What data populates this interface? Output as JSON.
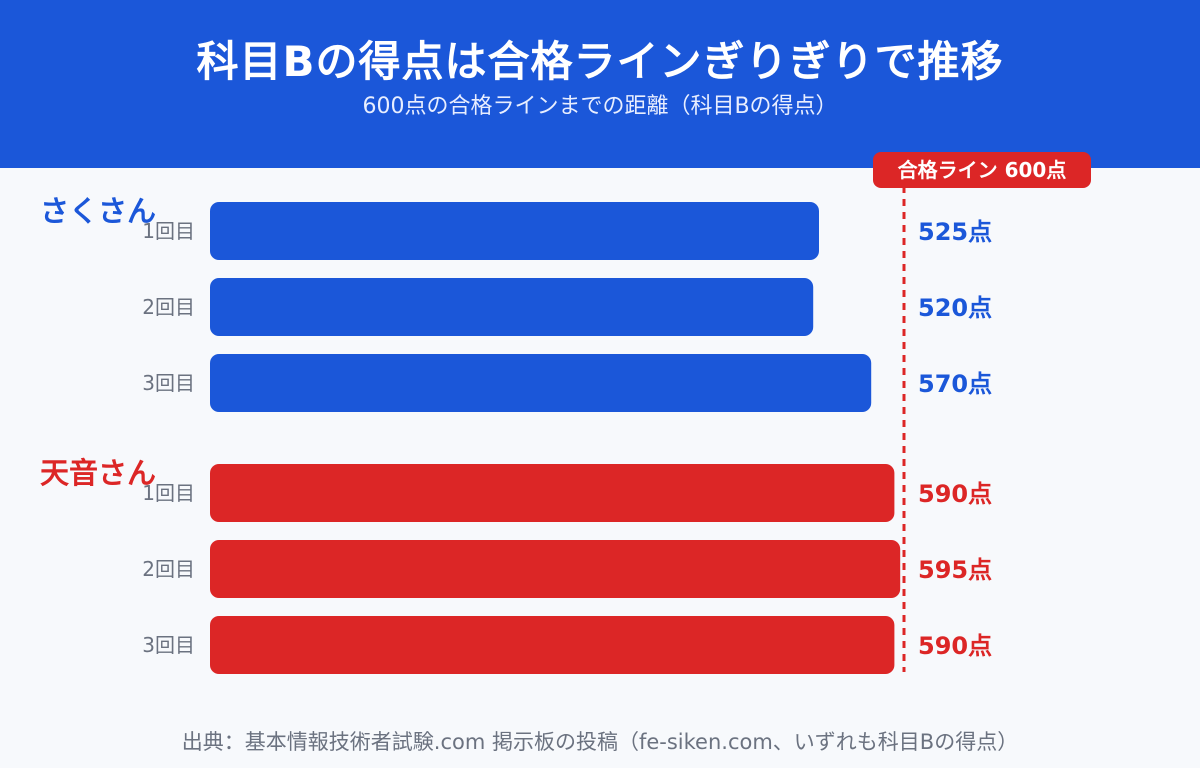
{
  "header": {
    "title": "科目Bの得点は合格ラインぎりぎりで推移",
    "subtitle": "600点の合格ラインまでの距離（科目Bの得点）"
  },
  "source": "出典：基本情報技術者試験.com 掲示板の投稿（fe-siken.com、いずれも科目Bの得点）",
  "colors": {
    "header_bg": "#1b57d9",
    "sakusan": "#1b57d9",
    "amane": "#dc2626",
    "threshold": "#dc2626",
    "attempt_label": "#6b7280",
    "background": "#f7f9fc"
  },
  "chart_data": {
    "type": "bar",
    "orientation": "horizontal",
    "title": "科目Bの得点は合格ラインぎりぎりで推移",
    "subtitle": "600点の合格ラインまでの距離（科目Bの得点）",
    "xlim": [
      0,
      640
    ],
    "grid": false,
    "threshold": {
      "value": 600,
      "label": "合格ライン 600点"
    },
    "groups": [
      {
        "name": "さくさん",
        "color": "#1b57d9",
        "items": [
          {
            "label": "1回目",
            "value": 525,
            "value_label": "525点"
          },
          {
            "label": "2回目",
            "value": 520,
            "value_label": "520点"
          },
          {
            "label": "3回目",
            "value": 570,
            "value_label": "570点"
          }
        ]
      },
      {
        "name": "天音さん",
        "color": "#dc2626",
        "items": [
          {
            "label": "1回目",
            "value": 590,
            "value_label": "590点"
          },
          {
            "label": "2回目",
            "value": 595,
            "value_label": "595点"
          },
          {
            "label": "3回目",
            "value": 590,
            "value_label": "590点"
          }
        ]
      }
    ]
  }
}
